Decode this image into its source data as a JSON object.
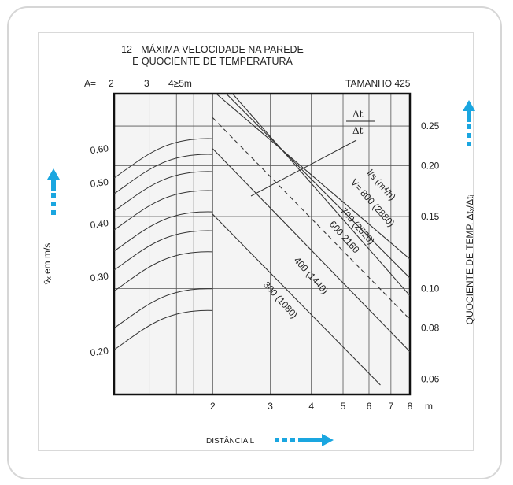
{
  "chart_data": {
    "type": "line",
    "title_line1": "12 - MÁXIMA VELOCIDADE NA PAREDE",
    "title_line2": "E QUOCIENTE DE TEMPERATURA",
    "size_label": "TAMANHO 425",
    "a_label": "A=",
    "a_values": [
      "2",
      "3",
      "4≥5m"
    ],
    "xlabel": "DISTÂNCIA L",
    "x_unit": "m",
    "x_scale": "log",
    "x_ticks": [
      2,
      3,
      4,
      5,
      6,
      7,
      8
    ],
    "xlim": [
      1,
      8
    ],
    "ylabel_left": "v̄ₓ em m/s",
    "y_left_ticks": [
      0.2,
      0.3,
      0.4,
      0.5,
      0.6
    ],
    "y_left_tick_labels": [
      "0.20",
      "0.30",
      "0.40",
      "0.50",
      "0.60"
    ],
    "ylabel_right": "QUOCIENTE DE TEMP. Δtₓ/Δtᵢ",
    "y_right_ticks": [
      0.06,
      0.08,
      0.1,
      0.15,
      0.2,
      0.25
    ],
    "y_right_tick_labels": [
      "0.06",
      "0.08",
      "0.10",
      "0.15",
      "0.20",
      "0.25"
    ],
    "ylim_right": [
      0.055,
      0.3
    ],
    "annotation_fraction_top": "Δt",
    "annotation_fraction_bottom": "Δt",
    "flow_unit_label": "l/s (m³/h)",
    "series": [
      {
        "name": "V= 800 (2880)",
        "points": [
          [
            2.05,
            0.3
          ],
          [
            8.0,
            0.118
          ]
        ]
      },
      {
        "name": "700 (2520)",
        "points": [
          [
            2.2,
            0.3
          ],
          [
            8.0,
            0.106
          ]
        ]
      },
      {
        "name": "600 2160",
        "points": [
          [
            2.3,
            0.3
          ],
          [
            8.0,
            0.096
          ]
        ]
      },
      {
        "name": "400 (1440)",
        "points": [
          [
            2.0,
            0.22
          ],
          [
            8.0,
            0.07
          ]
        ]
      },
      {
        "name": "300 (1080)",
        "points": [
          [
            2.0,
            0.152
          ],
          [
            6.5,
            0.058
          ]
        ]
      },
      {
        "name": "",
        "dashed": true,
        "points": [
          [
            2.0,
            0.262
          ],
          [
            8.0,
            0.084
          ]
        ]
      }
    ],
    "velocity_curves_left": {
      "x_range": [
        1,
        2
      ],
      "velocity_values_at_x2": [
        0.61,
        0.56,
        0.51,
        0.46,
        0.41,
        0.37,
        0.33,
        0.27,
        0.24
      ]
    },
    "grid": true
  },
  "colors": {
    "arrow": "#1aa6e0",
    "line": "#333333",
    "grid": "#555555",
    "plot_background": "#f4f4f4"
  }
}
